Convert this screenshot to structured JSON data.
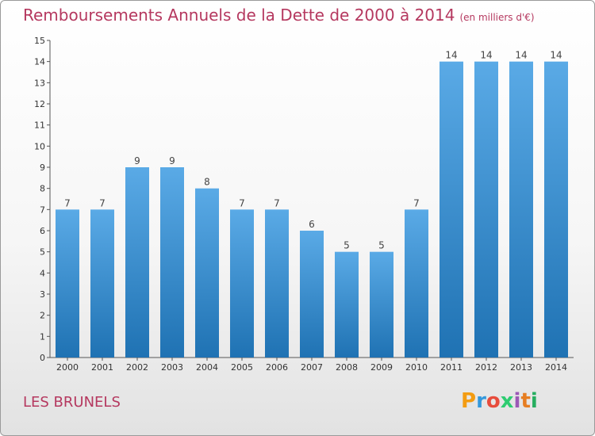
{
  "header": {
    "title": "Remboursements Annuels de la Dette de 2000 à 2014",
    "unit": "(en milliers d'€)"
  },
  "footer": {
    "commune": "LES BRUNELS",
    "logo_letters": [
      "P",
      "r",
      "o",
      "x",
      "i",
      "t",
      "i"
    ],
    "logo_colors": [
      "#f39c12",
      "#3498db",
      "#e74c3c",
      "#2ecc71",
      "#9b59b6",
      "#e67e22",
      "#27ae60"
    ]
  },
  "colors": {
    "bar_top": "#5aaae6",
    "bar_bottom": "#1f72b3",
    "title": "#b5385f"
  },
  "chart_data": {
    "type": "bar",
    "title": "Remboursements Annuels de la Dette de 2000 à 2014",
    "categories": [
      "2000",
      "2001",
      "2002",
      "2003",
      "2004",
      "2005",
      "2006",
      "2007",
      "2008",
      "2009",
      "2010",
      "2011",
      "2012",
      "2013",
      "2014"
    ],
    "values": [
      7,
      7,
      9,
      9,
      8,
      7,
      7,
      6,
      5,
      5,
      7,
      14,
      14,
      14,
      14
    ],
    "ylim": [
      0,
      15
    ],
    "yticks": [
      0,
      1,
      2,
      3,
      4,
      5,
      6,
      7,
      8,
      9,
      10,
      11,
      12,
      13,
      14,
      15
    ],
    "grid": false,
    "xlabel": "",
    "ylabel": ""
  }
}
